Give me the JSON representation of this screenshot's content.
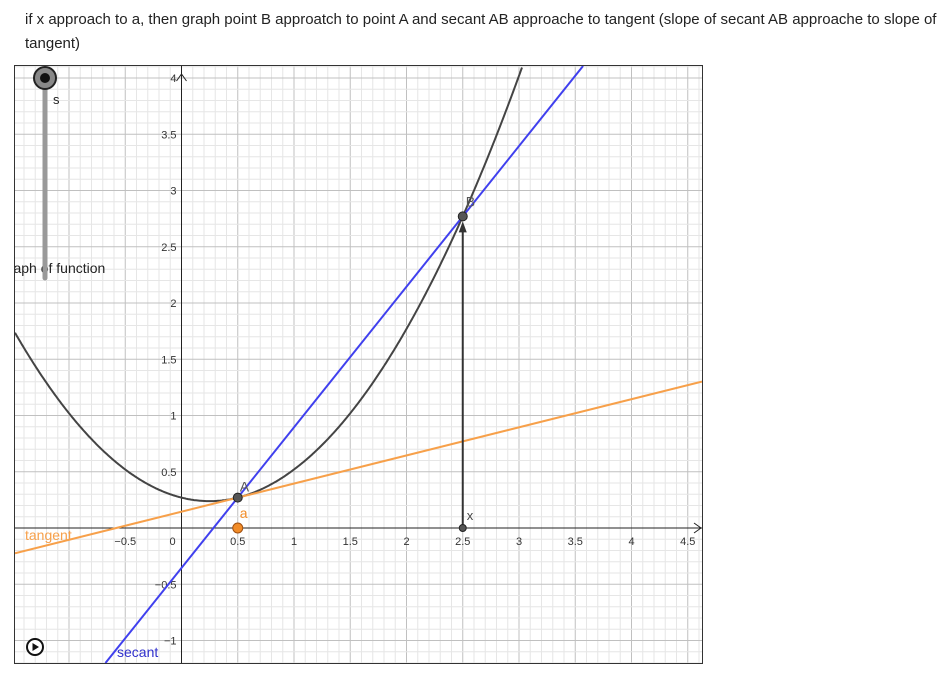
{
  "description": "if x approach to a, then graph point B approatch to point A and secant AB approache to tangent (slope of secant AB approache to slope of tangent)",
  "graph": {
    "x_ticks": [
      "−0.5",
      "0",
      "0.5",
      "1",
      "1.5",
      "2",
      "2.5",
      "3",
      "3.5",
      "4",
      "4.5"
    ],
    "y_ticks": [
      "−1",
      "−0.5",
      "0.5",
      "1",
      "1.5",
      "2",
      "2.5",
      "3",
      "3.5",
      "4"
    ],
    "labels": {
      "slider": "s",
      "function": "graph of function",
      "tangent": "tangent",
      "secant": "secant",
      "pointA": "A",
      "pointB": "B",
      "pointa": "a",
      "pointx": "x"
    },
    "a": 0.5,
    "x": 2.5,
    "function": "0.5x^2 - 0.25x + 0.27",
    "colors": {
      "function": "#444444",
      "secant": "#4040ee",
      "tangent": "#f7a04a",
      "point_a": "#f28c28",
      "grid_major": "#c0c0c0",
      "grid_minor": "#e6e6e6"
    },
    "slider_value": 1,
    "play_icon": "play-circle-icon"
  }
}
